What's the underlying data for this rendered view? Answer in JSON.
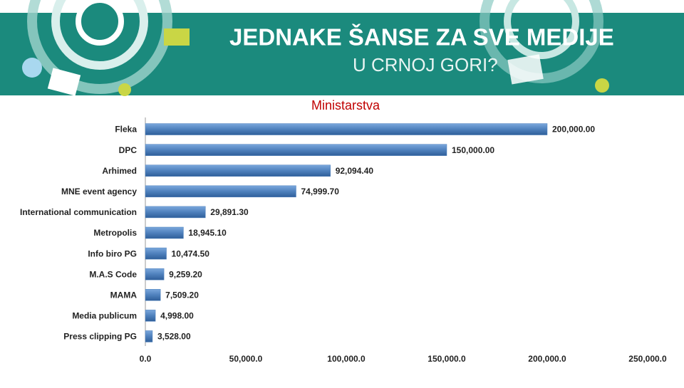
{
  "header": {
    "title": "JEDNAKE ŠANSE  ZA SVE MEDIJE",
    "subtitle": "U CRNOJ GORI?"
  },
  "chart_data": {
    "type": "hbar",
    "title": "Ministarstva",
    "categories": [
      "Fleka",
      "DPC",
      "Arhimed",
      "MNE event agency",
      "International communication",
      "Metropolis",
      "Info biro PG",
      "M.A.S Code",
      "MAMA",
      "Media publicum",
      "Press clipping PG"
    ],
    "values": [
      200000,
      150000,
      92094.4,
      74999.7,
      29891.3,
      18945.1,
      10474.5,
      9259.2,
      7509.2,
      4998,
      3528
    ],
    "value_labels": [
      "200,000.00",
      "150,000.00",
      "92,094.40",
      "74,999.70",
      "29,891.30",
      "18,945.10",
      "10,474.50",
      "9,259.20",
      "7,509.20",
      "4,998.00",
      "3,528.00"
    ],
    "color": "#4f81bd",
    "xlim": [
      0,
      250000
    ],
    "xticks": [
      {
        "value": 0,
        "label": "0.0"
      },
      {
        "value": 50000,
        "label": "50,000.0"
      },
      {
        "value": 100000,
        "label": "100,000.0"
      },
      {
        "value": 150000,
        "label": "150,000.0"
      },
      {
        "value": 200000,
        "label": "200,000.0"
      },
      {
        "value": 250000,
        "label": "250,000.0"
      }
    ]
  }
}
